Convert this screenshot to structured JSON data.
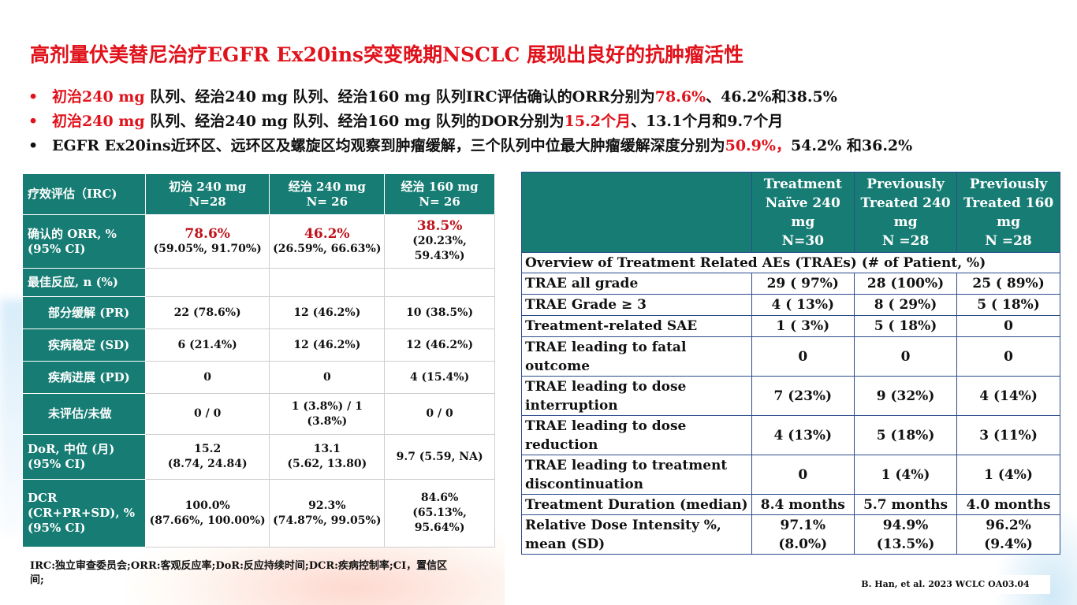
{
  "title": "高剂量伏美替尼治疗EGFR Ex20ins突变晚期NSCLC 展现出良好的抗肿瘤活性",
  "bullets": [
    {
      "marker": "•",
      "parts": [
        {
          "text": "初治240 mg ",
          "color": "red"
        },
        {
          "text": "队列、经治240 mg 队列、经治160 mg 队列IRC评估确认的ORR分别为",
          "color": "black"
        },
        {
          "text": "78.6%",
          "color": "red"
        },
        {
          "text": "、46.2%和38.5%",
          "color": "black"
        }
      ]
    },
    {
      "marker": "•",
      "parts": [
        {
          "text": "初治240 mg ",
          "color": "red"
        },
        {
          "text": "队列、经治240 mg 队列、经治160 mg 队列的DOR分别为",
          "color": "black"
        },
        {
          "text": "15.2个月",
          "color": "red"
        },
        {
          "text": "、13.1个月和9.7个月",
          "color": "black"
        }
      ]
    },
    {
      "marker": "•",
      "parts": [
        {
          "text": "EGFR Ex20ins近环区、远环区及螺旋区均观察到肿瘤缓解，三个队列中位最大肿瘤缓解深度分别为",
          "color": "black"
        },
        {
          "text": "50.9%，",
          "color": "red"
        },
        {
          "text": "54.2% 和36.2%",
          "color": "black"
        }
      ]
    }
  ],
  "efficacy_table": {
    "header": {
      "label": "疗效评估（IRC)",
      "cols": [
        {
          "line1": "初治 240 mg",
          "line2": "N=28"
        },
        {
          "line1": "经治 240 mg",
          "line2": "N= 26"
        },
        {
          "line1": "经治 160 mg",
          "line2": "N= 26"
        }
      ]
    },
    "orr": {
      "label1": "确认的 ORR, %",
      "label2": "(95% CI)",
      "cells": [
        {
          "value": "78.6%",
          "ci": "(59.05%, 91.70%)"
        },
        {
          "value": "46.2%",
          "ci": "(26.59%, 66.63%)"
        },
        {
          "value": "38.5%",
          "ci": "(20.23%, 59.43%)"
        }
      ]
    },
    "best_response": {
      "label": "最佳反应, n (%)"
    },
    "pr": {
      "label": "部分缓解 (PR)",
      "cells": [
        "22 (78.6%)",
        "12 (46.2%)",
        "10 (38.5%)"
      ]
    },
    "sd": {
      "label": "疾病稳定 (SD)",
      "cells": [
        "6 (21.4%)",
        "12 (46.2%)",
        "12 (46.2%)"
      ]
    },
    "pd": {
      "label": "疾病进展 (PD)",
      "cells": [
        "0",
        "0",
        "4 (15.4%)"
      ]
    },
    "ne": {
      "label": "未评估/未做",
      "cells": [
        "0 / 0",
        "1 (3.8%) / 1 (3.8%)",
        "0 / 0"
      ]
    },
    "dor": {
      "label1": "DoR, 中位 (月)",
      "label2": "(95% CI)",
      "cells": [
        {
          "value": "15.2",
          "ci": "(8.74, 24.84)"
        },
        {
          "value": "13.1",
          "ci": "(5.62, 13.80)"
        },
        {
          "value": "9.7 (5.59, NA)",
          "ci": ""
        }
      ]
    },
    "dcr": {
      "label1": "DCR (CR+PR+SD), %",
      "label2": "(95% CI)",
      "cells": [
        {
          "value": "100.0%",
          "ci": "(87.66%, 100.00%)"
        },
        {
          "value": "92.3%",
          "ci": "(74.87%, 99.05%)"
        },
        {
          "value": "84.6%",
          "ci": "(65.13%, 95.64%)"
        }
      ]
    }
  },
  "safety_table": {
    "header": [
      {
        "l1": "Treatment",
        "l2": "Naïve 240 mg",
        "l3": "N=30",
        "l4": ""
      },
      {
        "l1": "Previously",
        "l2": "Treated 240",
        "l3": "mg",
        "l4": "N =28"
      },
      {
        "l1": "Previously",
        "l2": "Treated 160",
        "l3": "mg",
        "l4": "N =28"
      }
    ],
    "overview": "Overview of Treatment Related AEs (TRAEs)  (# of Patient, %)",
    "rows": [
      {
        "label": "TRAE all grade",
        "cells": [
          "29 ( 97%)",
          "28 (100%)",
          "25 ( 89%)"
        ]
      },
      {
        "label": "TRAE Grade ≥ 3",
        "cells": [
          "4 ( 13%)",
          "8 ( 29%)",
          "5 ( 18%)"
        ]
      },
      {
        "label": "Treatment-related SAE",
        "cells": [
          "1 (  3%)",
          "5 ( 18%)",
          "0"
        ]
      },
      {
        "label": "TRAE leading to fatal outcome",
        "cells": [
          "0",
          "0",
          "0"
        ]
      },
      {
        "label": "TRAE leading to dose interruption",
        "cells": [
          "7 (23%)",
          "9 (32%)",
          "4 (14%)"
        ]
      },
      {
        "label": "TRAE leading to dose reduction",
        "cells": [
          "4 (13%)",
          "5 (18%)",
          "3 (11%)"
        ]
      },
      {
        "label": "TRAE leading to treatment discontinuation",
        "cells": [
          "0",
          "1 (4%)",
          "1 (4%)"
        ]
      },
      {
        "label": "Treatment Duration (median)",
        "cells": [
          "8.4 months",
          "5.7 months",
          "4.0 months"
        ]
      },
      {
        "label": "Relative Dose Intensity %, mean (SD)",
        "cells": [
          "97.1% (8.0%)",
          "94.9% (13.5%)",
          "96.2% (9.4%)"
        ]
      }
    ]
  },
  "footnote": "IRC:独立审查委员会;ORR:客观反应率;DoR:反应持续时间;DCR:疾病控制率;CI，置信区间;",
  "citation": "B. Han, et al. 2023 WCLC OA03.04",
  "colors": {
    "title_red": "#e0121b",
    "header_teal": "#177d74",
    "table_border_blue": "#2b4c8c"
  }
}
